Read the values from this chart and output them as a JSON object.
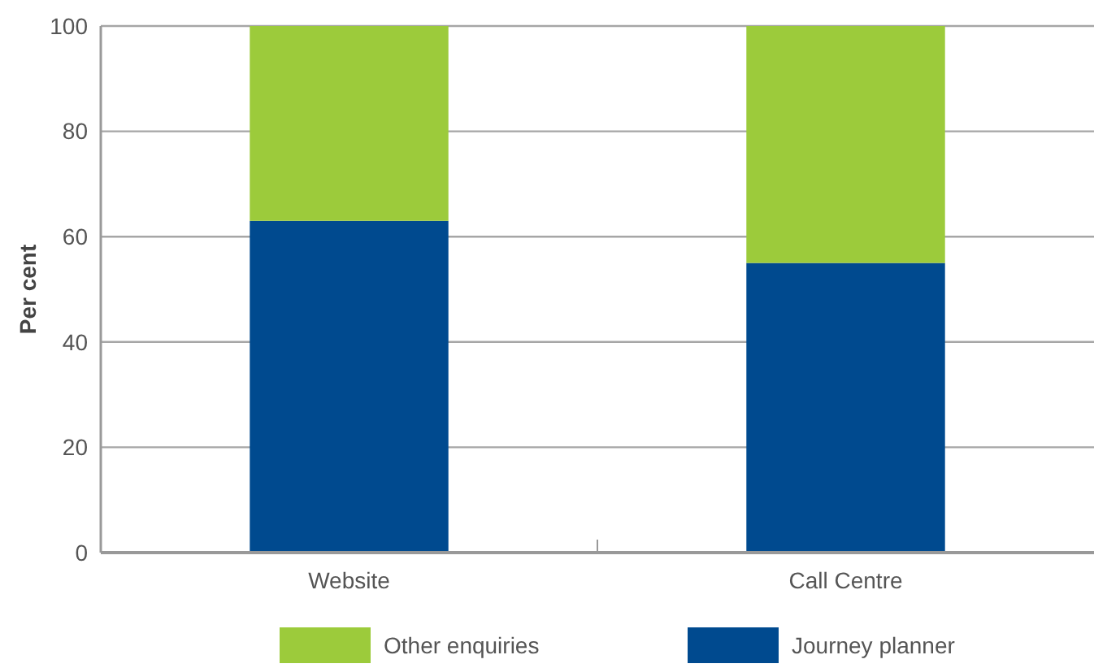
{
  "chart_data": {
    "type": "bar",
    "stacked": true,
    "ylabel": "Per cent",
    "categories": [
      "Website",
      "Call Centre"
    ],
    "series": [
      {
        "name": "Journey planner",
        "color": "#004a8f",
        "values": [
          63,
          55
        ]
      },
      {
        "name": "Other enquiries",
        "color": "#9ccb3b",
        "values": [
          37,
          45
        ]
      }
    ],
    "ylim": [
      0,
      100
    ],
    "yticks": [
      0,
      20,
      40,
      60,
      80,
      100
    ],
    "grid": "y",
    "legend": "bottom"
  }
}
